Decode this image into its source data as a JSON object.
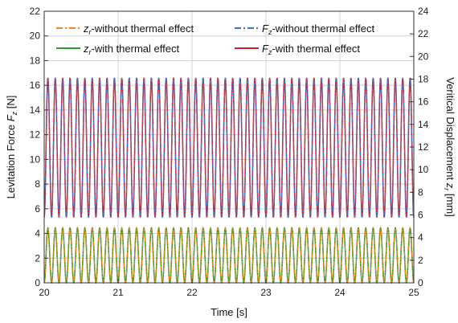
{
  "chart_data": {
    "type": "line",
    "x_axis": {
      "label": "Time [s]",
      "range": [
        20,
        25
      ],
      "ticks": [
        20,
        21,
        22,
        23,
        24,
        25
      ]
    },
    "y_left": {
      "label_main": "Levitation Force ",
      "label_var": "F",
      "label_sub": "z",
      "label_unit": " [N]",
      "range": [
        0,
        22
      ],
      "ticks": [
        0,
        2,
        4,
        6,
        8,
        10,
        12,
        14,
        16,
        18,
        20,
        22
      ]
    },
    "y_right": {
      "label_main": "Veritical Displacement ",
      "label_var": "z",
      "label_sub": "r",
      "label_unit": " [mm]",
      "range": [
        0,
        24
      ],
      "ticks": [
        0,
        2,
        4,
        6,
        8,
        10,
        12,
        14,
        16,
        18,
        20,
        22,
        24
      ]
    },
    "grid": true,
    "legend_position": "top",
    "signal": {
      "frequency_hz": 10,
      "phase_at_start": "minimum"
    },
    "series": [
      {
        "id": "zr_without",
        "var": "z",
        "sub": "r",
        "text": "-without thermal effect",
        "axis": "right",
        "min": 0,
        "max": 4.85,
        "color": "#f5821f",
        "style": "dashdot"
      },
      {
        "id": "zr_with",
        "var": "z",
        "sub": "r",
        "text": "-with thermal effect",
        "axis": "right",
        "min": 0,
        "max": 4.85,
        "color": "#2e9b2e",
        "style": "solid"
      },
      {
        "id": "fz_without",
        "var": "F",
        "sub": "z",
        "text": "-without thermal effect",
        "axis": "left",
        "min": 5.3,
        "max": 16.6,
        "color": "#3a78c8",
        "style": "dashdot"
      },
      {
        "id": "fz_with",
        "var": "F",
        "sub": "z",
        "text": "-with thermal effect",
        "axis": "left",
        "min": 5.3,
        "max": 16.6,
        "color": "#d6202a",
        "style": "solid"
      }
    ]
  }
}
